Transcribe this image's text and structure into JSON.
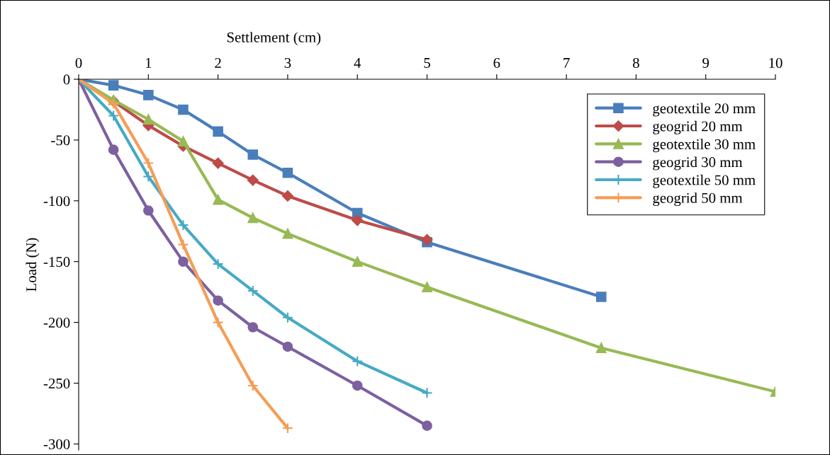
{
  "chart_data": {
    "type": "line",
    "xlabel": "Settlement (cm)",
    "ylabel": "Load (N)",
    "xlim": [
      0,
      10
    ],
    "xticks": [
      0,
      1,
      2,
      3,
      4,
      5,
      6,
      7,
      8,
      9,
      10
    ],
    "ylim": [
      -305,
      0
    ],
    "yticks": [
      0,
      -50,
      -100,
      -150,
      -200,
      -250,
      -300
    ],
    "grid": false,
    "legend": "top right",
    "line_style": "solid",
    "series": [
      {
        "name": "geotextile 20 mm",
        "color": "#4a7ebb",
        "marker": "square",
        "x": [
          0,
          0.5,
          1,
          1.5,
          2,
          2.5,
          3,
          4,
          5,
          7.5
        ],
        "values": [
          0,
          -5,
          -13,
          -25,
          -43,
          -62,
          -77,
          -110,
          -134,
          -179
        ]
      },
      {
        "name": "geogrid 20 mm",
        "color": "#be4b48",
        "marker": "diamond",
        "x": [
          0,
          0.5,
          1,
          1.5,
          2,
          2.5,
          3,
          4,
          5
        ],
        "values": [
          0,
          -18,
          -38,
          -55,
          -69,
          -83,
          -96,
          -116,
          -132
        ]
      },
      {
        "name": "geotextile 30 mm",
        "color": "#98b954",
        "marker": "triangle",
        "x": [
          0,
          0.5,
          1,
          1.5,
          2,
          2.5,
          3,
          4,
          5,
          7.5,
          10
        ],
        "values": [
          0,
          -17,
          -33,
          -51,
          -99,
          -114,
          -127,
          -150,
          -171,
          -221,
          -257
        ]
      },
      {
        "name": "geogrid 30 mm",
        "color": "#7d60a0",
        "marker": "circle",
        "x": [
          0,
          0.5,
          1,
          1.5,
          2,
          2.5,
          3,
          4,
          5
        ],
        "values": [
          0,
          -58,
          -108,
          -150,
          -182,
          -204,
          -220,
          -252,
          -285
        ]
      },
      {
        "name": "geotextile 50 mm",
        "color": "#46aac5",
        "marker": "cross",
        "x": [
          0,
          0.5,
          1,
          1.5,
          2,
          2.5,
          3,
          4,
          5
        ],
        "values": [
          0,
          -30,
          -80,
          -120,
          -152,
          -174,
          -196,
          -232,
          -258
        ]
      },
      {
        "name": "geogrid 50 mm",
        "color": "#f59d56",
        "marker": "cross",
        "x": [
          0,
          0.5,
          1,
          1.5,
          2,
          2.5,
          3
        ],
        "values": [
          0,
          -20,
          -69,
          -136,
          -200,
          -252,
          -287
        ]
      }
    ]
  }
}
